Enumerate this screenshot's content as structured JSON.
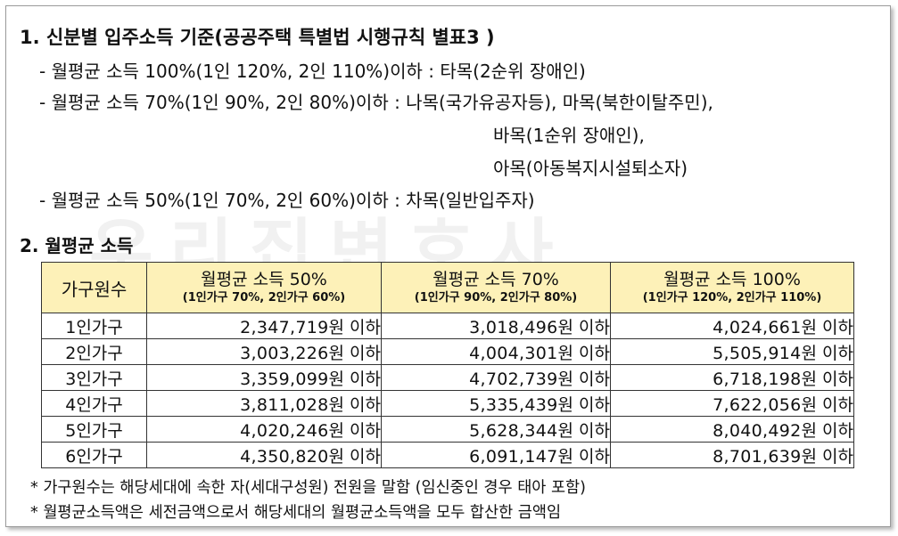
{
  "watermark": "우리집변호사",
  "section1": {
    "title": "1. 신분별 입주소득 기준(공공주택 특별법 시행규칙 별표3 )",
    "lines": [
      "- 월평균 소득 100%(1인 120%, 2인 110%)이하 : 타목(2순위 장애인)",
      "- 월평균 소득 70%(1인 90%, 2인 80%)이하 : 나목(국가유공자등), 마목(북한이탈주민),",
      "바목(1순위 장애인),",
      "아목(아동복지시설퇴소자)",
      "- 월평균 소득 50%(1인 70%, 2인 60%)이하 : 차목(일반입주자)"
    ]
  },
  "section2": {
    "title": "2. 월평균 소득"
  },
  "table": {
    "headers": [
      {
        "main": "가구원수",
        "sub": ""
      },
      {
        "main": "월평균 소득 50%",
        "sub": "(1인가구 70%, 2인가구 60%)"
      },
      {
        "main": "월평균 소득 70%",
        "sub": "(1인가구 90%, 2인가구 80%)"
      },
      {
        "main": "월평균 소득 100%",
        "sub": "(1인가구 120%, 2인가구 110%)"
      }
    ],
    "suffix": "원 이하",
    "rows": [
      {
        "label": "1인가구",
        "v50": "2,347,719",
        "v70": "3,018,496",
        "v100": "4,024,661"
      },
      {
        "label": "2인가구",
        "v50": "3,003,226",
        "v70": "4,004,301",
        "v100": "5,505,914"
      },
      {
        "label": "3인가구",
        "v50": "3,359,099",
        "v70": "4,702,739",
        "v100": "6,718,198"
      },
      {
        "label": "4인가구",
        "v50": "3,811,028",
        "v70": "5,335,439",
        "v100": "7,622,056"
      },
      {
        "label": "5인가구",
        "v50": "4,020,246",
        "v70": "5,628,344",
        "v100": "8,040,492"
      },
      {
        "label": "6인가구",
        "v50": "4,350,820",
        "v70": "6,091,147",
        "v100": "8,701,639"
      }
    ]
  },
  "notes": [
    "* 가구원수는 해당세대에 속한 자(세대구성원) 전원을 말함 (임신중인 경우 태아 포함)",
    "* 월평균소득액은 세전금액으로서 해당세대의 월평균소득액을 모두 합산한 금액임"
  ],
  "colors": {
    "header_bg": "#fdf1b8",
    "border": "#333333"
  }
}
